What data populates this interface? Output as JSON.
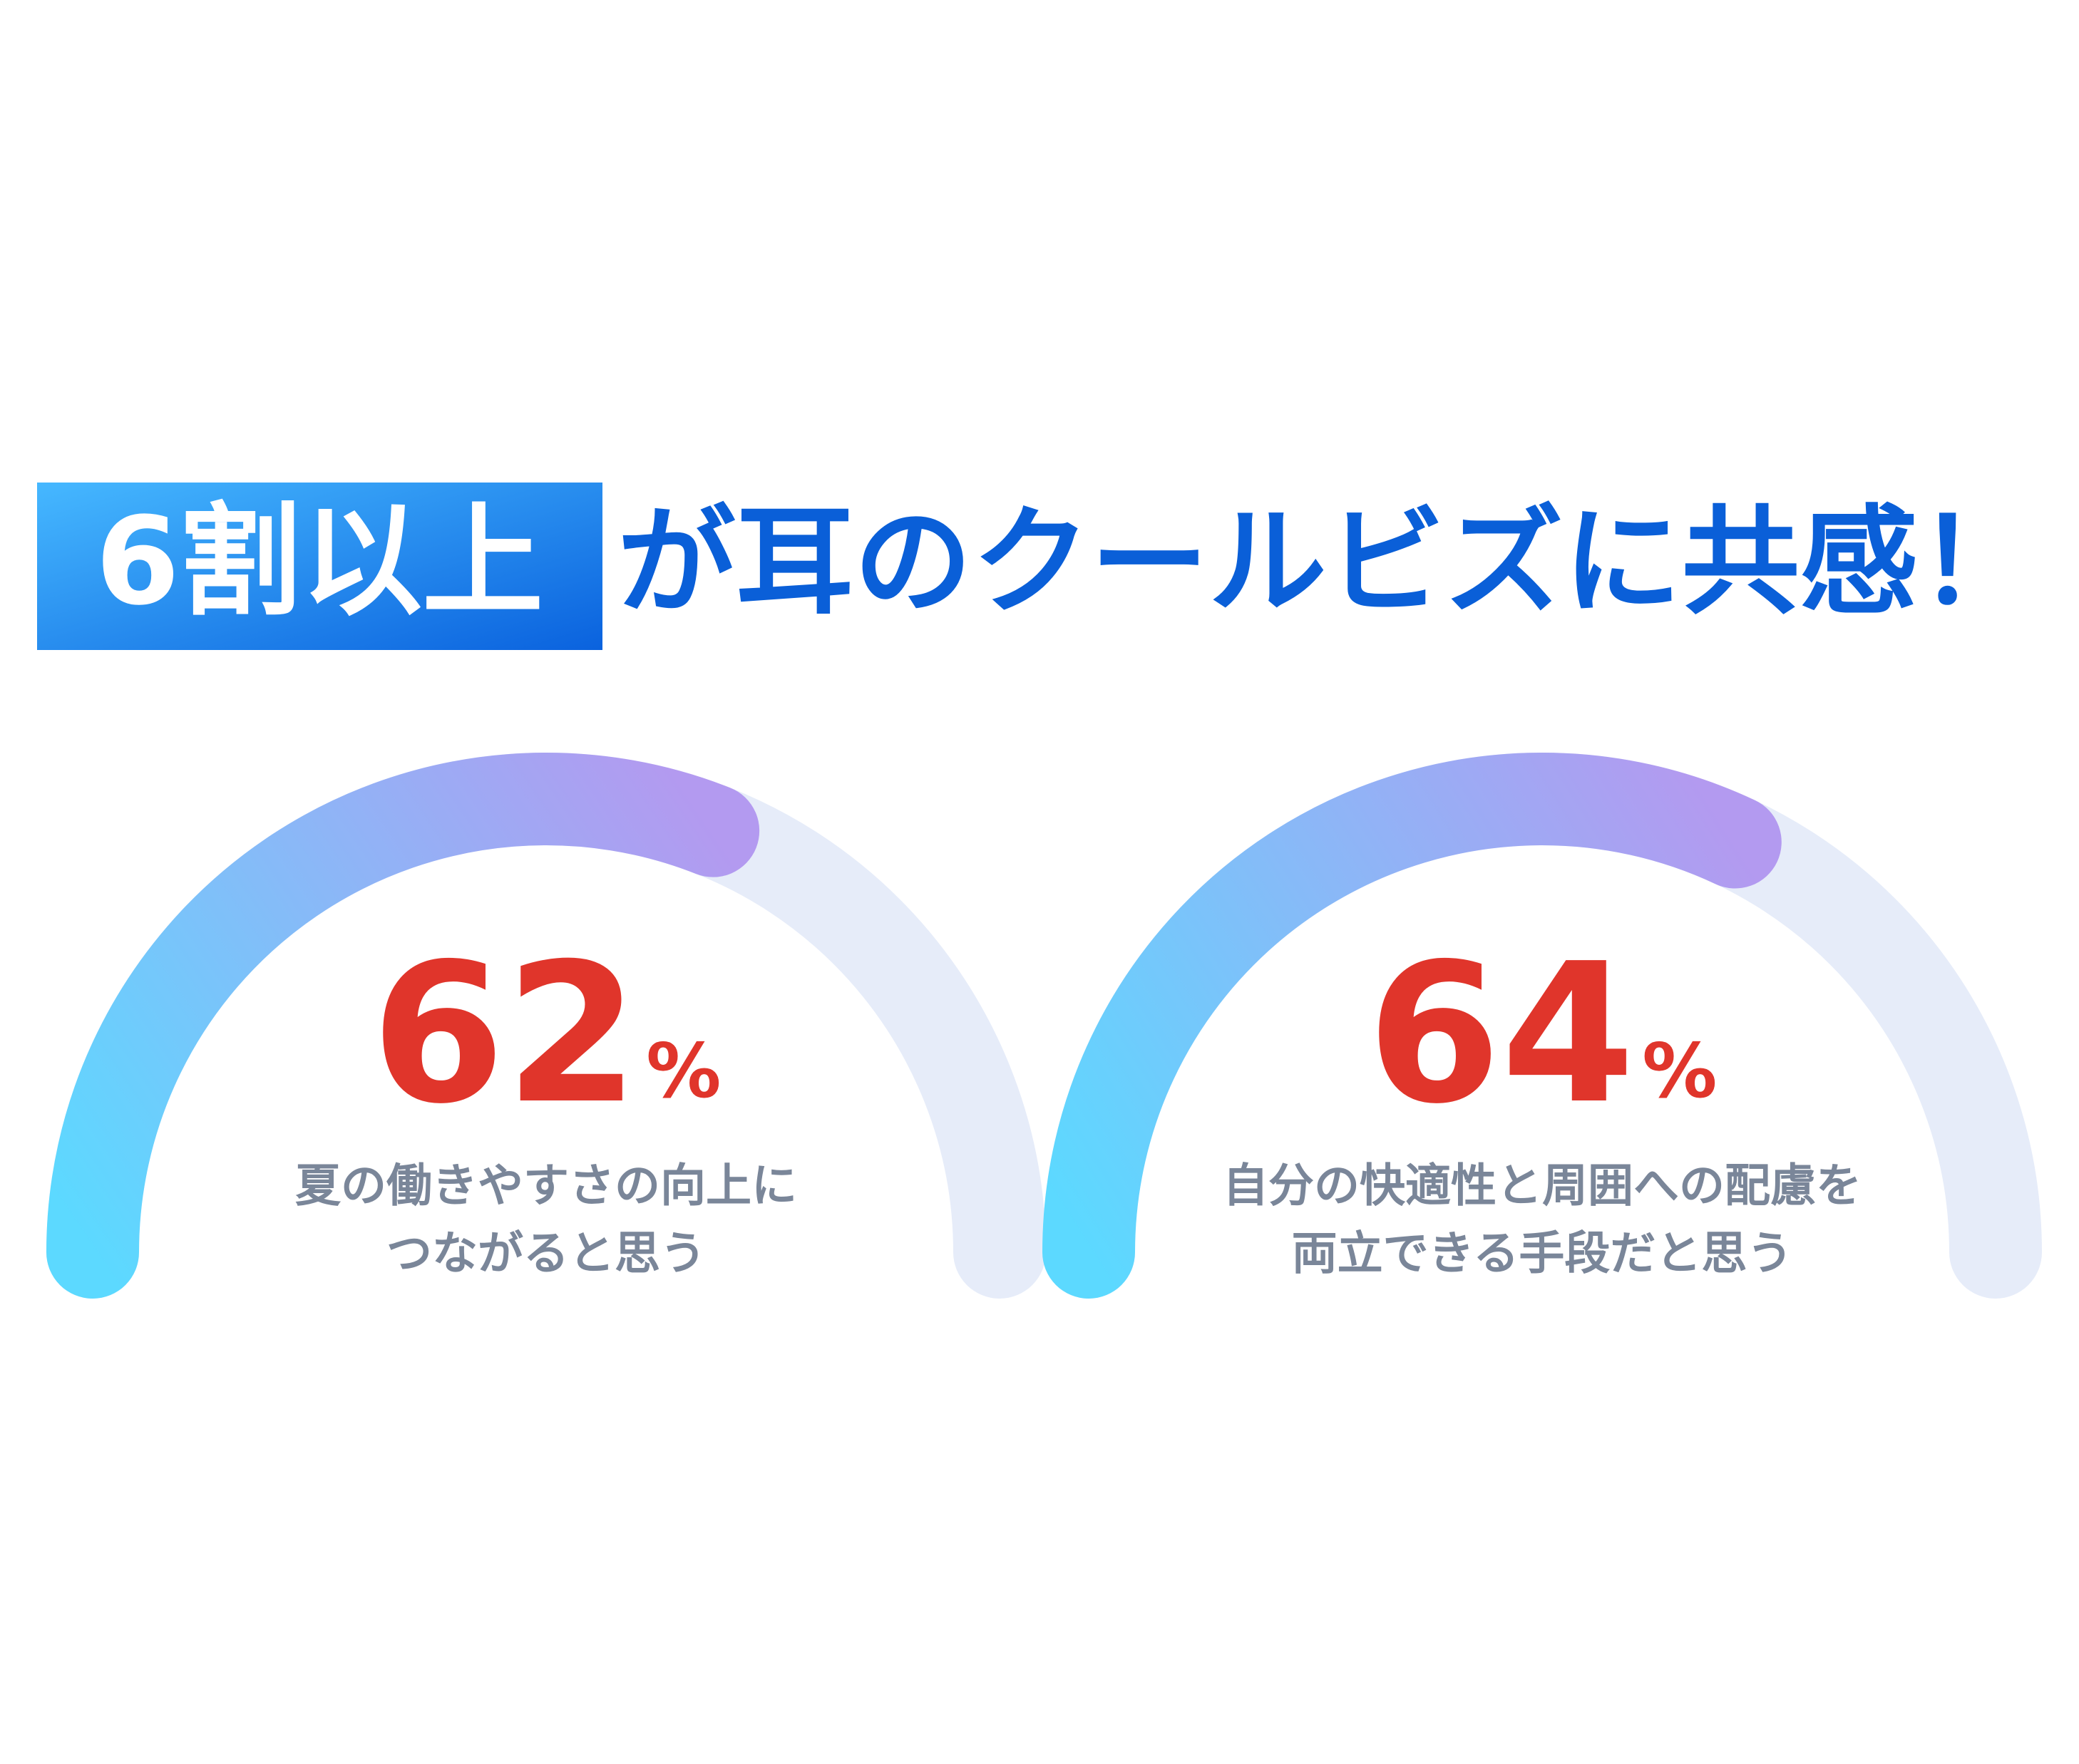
{
  "headline": {
    "highlight": "6割以上",
    "rest": "が耳のクールビズに共感！"
  },
  "chart_data": [
    {
      "type": "gauge",
      "values": [
        62
      ],
      "unit": "%",
      "ylim": [
        0,
        100
      ],
      "color_start": "#5cd9ff",
      "color_end": "#b39af0",
      "track_color": "#e6ecf9",
      "label_lines": [
        "夏の働きやすさの向上に",
        "つながると思う"
      ]
    },
    {
      "type": "gauge",
      "values": [
        64
      ],
      "unit": "%",
      "ylim": [
        0,
        100
      ],
      "color_start": "#5cd9ff",
      "color_end": "#b39af0",
      "track_color": "#e6ecf9",
      "label_lines": [
        "自分の快適性と周囲への配慮を",
        "両立できる手段だと思う"
      ]
    }
  ]
}
